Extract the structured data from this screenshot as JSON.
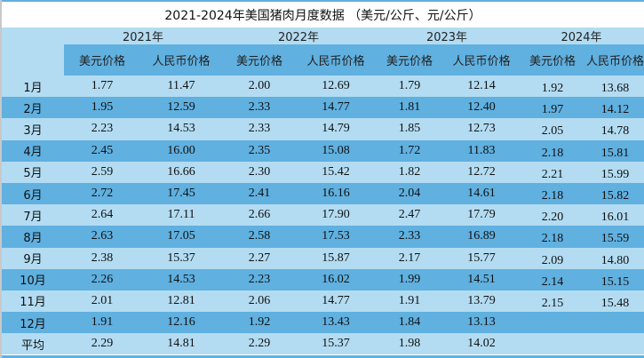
{
  "title": "2021-2024年美国猪肉月度数据 （美元/公斤、元/公斤）",
  "years": [
    "2021年",
    "2022年",
    "2023年",
    "2024年"
  ],
  "subheaders": [
    "美元价格",
    "人民币价格"
  ],
  "colors": {
    "light_row": "#b3dcf2",
    "dark_row": "#60b0e0"
  },
  "rows": [
    {
      "label": "1月",
      "v": [
        "1.77",
        "11.47",
        "2.00",
        "12.69",
        "1.79",
        "12.14",
        "1.92",
        "13.68"
      ]
    },
    {
      "label": "2月",
      "v": [
        "1.95",
        "12.59",
        "2.33",
        "14.77",
        "1.81",
        "12.40",
        "1.97",
        "14.12"
      ]
    },
    {
      "label": "3月",
      "v": [
        "2.23",
        "14.53",
        "2.33",
        "14.79",
        "1.85",
        "12.73",
        "2.05",
        "14.78"
      ]
    },
    {
      "label": "4月",
      "v": [
        "2.45",
        "16.00",
        "2.35",
        "15.08",
        "1.72",
        "11.83",
        "2.18",
        "15.81"
      ]
    },
    {
      "label": "5月",
      "v": [
        "2.59",
        "16.66",
        "2.30",
        "15.42",
        "1.82",
        "12.72",
        "2.21",
        "15.99"
      ]
    },
    {
      "label": "6月",
      "v": [
        "2.72",
        "17.45",
        "2.41",
        "16.16",
        "2.04",
        "14.61",
        "2.18",
        "15.82"
      ]
    },
    {
      "label": "7月",
      "v": [
        "2.64",
        "17.11",
        "2.66",
        "17.90",
        "2.47",
        "17.79",
        "2.20",
        "16.01"
      ]
    },
    {
      "label": "8月",
      "v": [
        "2.63",
        "17.05",
        "2.58",
        "17.53",
        "2.33",
        "16.89",
        "2.18",
        "15.59"
      ]
    },
    {
      "label": "9月",
      "v": [
        "2.38",
        "15.37",
        "2.27",
        "15.87",
        "2.17",
        "15.77",
        "2.09",
        "14.80"
      ]
    },
    {
      "label": "10月",
      "v": [
        "2.26",
        "14.53",
        "2.23",
        "16.02",
        "1.99",
        "14.51",
        "2.14",
        "15.15"
      ]
    },
    {
      "label": "11月",
      "v": [
        "2.01",
        "12.81",
        "2.06",
        "14.77",
        "1.91",
        "13.79",
        "2.15",
        "15.48"
      ]
    },
    {
      "label": "12月",
      "v": [
        "1.91",
        "12.16",
        "1.92",
        "13.43",
        "1.84",
        "13.13",
        "",
        ""
      ]
    },
    {
      "label": "平均",
      "v": [
        "2.29",
        "14.81",
        "2.29",
        "15.37",
        "1.98",
        "14.02",
        "",
        ""
      ]
    }
  ]
}
